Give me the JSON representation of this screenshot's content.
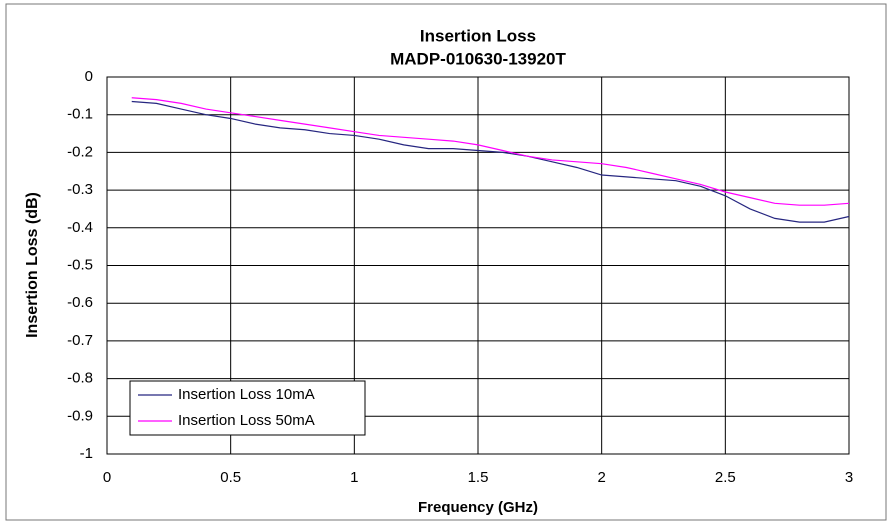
{
  "chart_data": {
    "type": "line",
    "title": "Insertion Loss",
    "subtitle": "MADP-010630-13920T",
    "x_label": "Frequency (GHz)",
    "y_label": "Insertion Loss (dB)",
    "x": [
      0.1,
      0.2,
      0.3,
      0.4,
      0.5,
      0.6,
      0.7,
      0.8,
      0.9,
      1.0,
      1.1,
      1.2,
      1.3,
      1.4,
      1.5,
      1.6,
      1.7,
      1.8,
      1.9,
      2.0,
      2.1,
      2.2,
      2.3,
      2.4,
      2.5,
      2.6,
      2.7,
      2.8,
      2.9,
      3.0
    ],
    "series": [
      {
        "name": "Insertion Loss 10mA",
        "color": "#262680",
        "values": [
          -0.065,
          -0.07,
          -0.085,
          -0.1,
          -0.11,
          -0.125,
          -0.135,
          -0.14,
          -0.15,
          -0.155,
          -0.165,
          -0.18,
          -0.19,
          -0.19,
          -0.195,
          -0.2,
          -0.21,
          -0.225,
          -0.24,
          -0.26,
          -0.265,
          -0.27,
          -0.275,
          -0.29,
          -0.315,
          -0.35,
          -0.375,
          -0.385,
          -0.385,
          -0.37
        ]
      },
      {
        "name": "Insertion Loss 50mA",
        "color": "#ff00ff",
        "values": [
          -0.055,
          -0.06,
          -0.07,
          -0.085,
          -0.095,
          -0.105,
          -0.115,
          -0.125,
          -0.135,
          -0.145,
          -0.155,
          -0.16,
          -0.165,
          -0.17,
          -0.18,
          -0.195,
          -0.21,
          -0.22,
          -0.225,
          -0.23,
          -0.24,
          -0.255,
          -0.27,
          -0.285,
          -0.305,
          -0.32,
          -0.335,
          -0.34,
          -0.34,
          -0.335
        ]
      }
    ],
    "xlim": [
      0,
      3
    ],
    "xticks": [
      0,
      0.5,
      1,
      1.5,
      2,
      2.5,
      3
    ],
    "ylim": [
      -1,
      0
    ],
    "yticks": [
      0,
      -0.1,
      -0.2,
      -0.3,
      -0.4,
      -0.5,
      -0.6,
      -0.7,
      -0.8,
      -0.9,
      -1
    ],
    "grid": true,
    "legend": "lower left"
  }
}
